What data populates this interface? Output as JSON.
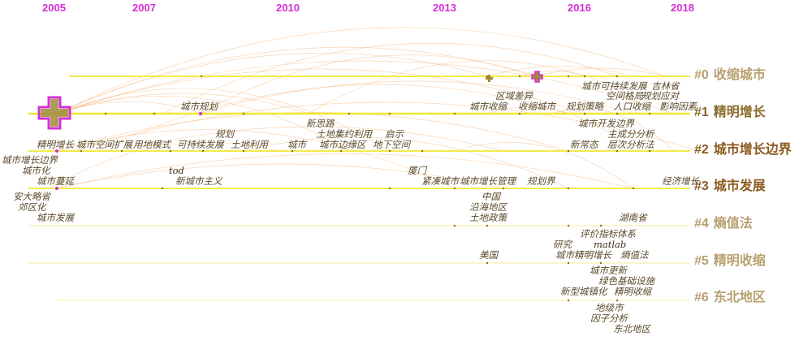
{
  "years": [
    "2005",
    "2007",
    "2010",
    "2013",
    "2016",
    "2018"
  ],
  "clusters": [
    {
      "id": "#0",
      "name": "收缩城市",
      "color": "#b8a070"
    },
    {
      "id": "#1",
      "name": "精明增长",
      "color": "#8a6a2a"
    },
    {
      "id": "#2",
      "name": "城市增长边界",
      "color": "#8a5a20"
    },
    {
      "id": "#3",
      "name": "城市发展",
      "color": "#8a5a20"
    },
    {
      "id": "#4",
      "name": "熵值法",
      "color": "#b8a070"
    },
    {
      "id": "#5",
      "name": "精明收缩",
      "color": "#b8a070"
    },
    {
      "id": "#6",
      "name": "东北地区",
      "color": "#b8a070"
    }
  ],
  "keywords": [
    "城市规划",
    "区域差异",
    "城市收缩",
    "收缩城市",
    "城市可持续发展",
    "吉林省",
    "空间格局",
    "规划应对",
    "规划策略",
    "人口收缩",
    "影响因素",
    "新思路",
    "土地集约利用",
    "启示",
    "规划",
    "精明增长",
    "城市空间扩展",
    "用地模式",
    "可持续发展",
    "土地利用",
    "城市",
    "城市边缘区",
    "地下空间",
    "城市开发边界",
    "主成分分析",
    "新常态",
    "层次分析法",
    "城市增长边界",
    "城市化",
    "tod",
    "新城市主义",
    "厦门",
    "城市蔓延",
    "紧凑城市",
    "城市增长管理",
    "规划界",
    "经济增长",
    "安大略省",
    "中国",
    "郊区化",
    "沿海地区",
    "城市发展",
    "土地政策",
    "湖南省",
    "评价指标体系",
    "研究",
    "matlab",
    "美国",
    "城市精明增长",
    "熵值法",
    "城市更新",
    "绿色基础设施",
    "新型城镇化",
    "精明收缩",
    "地级市",
    "因子分析",
    "东北地区"
  ],
  "colors": {
    "year": "#d42fd4",
    "timeline": "#f0e830",
    "arc": "#f5b67a",
    "node_ring": "#d42fd4",
    "node_core": "#a08a3a"
  }
}
